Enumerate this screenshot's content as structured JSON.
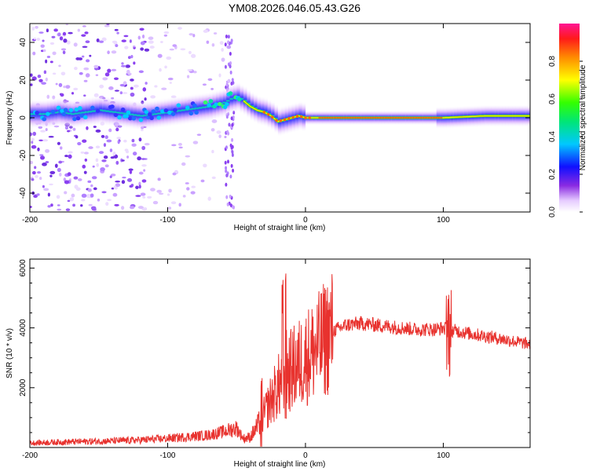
{
  "title": "YM08.2026.046.05.43.G26",
  "chart_data": [
    {
      "type": "heatmap",
      "xlabel": "Height of straight line (km)",
      "ylabel": "Frequency (Hz)",
      "xlim": [
        -200,
        163
      ],
      "ylim": [
        -50,
        50
      ],
      "x_ticks": [
        "-200",
        "-100",
        "0",
        "100"
      ],
      "x_tick_values": [
        -200,
        -100,
        0,
        100
      ],
      "y_ticks": [
        "40",
        "20",
        "0",
        "-20",
        "-40"
      ],
      "y_tick_values": [
        40,
        20,
        0,
        -20,
        -40
      ],
      "ridge": {
        "x": [
          -200,
          -190,
          -180,
          -170,
          -160,
          -150,
          -140,
          -130,
          -120,
          -110,
          -100,
          -90,
          -80,
          -70,
          -60,
          -55,
          -50,
          -45,
          -40,
          -35,
          -30,
          -25,
          -20,
          -15,
          -10,
          -5,
          0,
          10,
          30,
          60,
          100,
          130,
          163
        ],
        "frequency": [
          2,
          2,
          3,
          2,
          3,
          4,
          3,
          2,
          1,
          2,
          3,
          4,
          5,
          6,
          8,
          10,
          11,
          9,
          6,
          4,
          3,
          1,
          -2,
          -1,
          0,
          1,
          0,
          0,
          0,
          0,
          0,
          1,
          1
        ]
      },
      "colorbar": {
        "label": "Normalized spectral amplitude",
        "ticks": [
          "0.0",
          "0.2",
          "0.4",
          "0.6",
          "0.8"
        ],
        "tick_values": [
          0,
          0.2,
          0.4,
          0.6,
          0.8
        ]
      }
    },
    {
      "type": "line",
      "xlabel": "Height of straight line (km)",
      "ylabel": "SNR (10 * v/v)",
      "xlim": [
        -200,
        163
      ],
      "ylim": [
        0,
        6300
      ],
      "color": "#e8322e",
      "x_ticks": [
        "-200",
        "-100",
        "0",
        "100"
      ],
      "x_tick_values": [
        -200,
        -100,
        0,
        100
      ],
      "y_ticks": [
        "2000",
        "4000",
        "6000"
      ],
      "y_tick_values": [
        2000,
        4000,
        6000
      ],
      "series": [
        {
          "x": [
            -200,
            -180,
            -160,
            -140,
            -120,
            -100,
            -80,
            -70,
            -60,
            -50,
            -45,
            -40,
            -35,
            -30,
            -25,
            -20,
            -15,
            -10,
            -5,
            0,
            5,
            10,
            15,
            20,
            30,
            40,
            50,
            60,
            80,
            95,
            100,
            105,
            110,
            120,
            140,
            163
          ],
          "y": [
            150,
            180,
            200,
            220,
            250,
            300,
            380,
            420,
            520,
            650,
            300,
            350,
            700,
            1100,
            1600,
            2000,
            2400,
            2600,
            2800,
            3000,
            3200,
            3400,
            3700,
            3900,
            4100,
            4150,
            4100,
            4050,
            3950,
            3950,
            4000,
            3900,
            3900,
            3800,
            3650,
            3450
          ]
        }
      ]
    }
  ]
}
